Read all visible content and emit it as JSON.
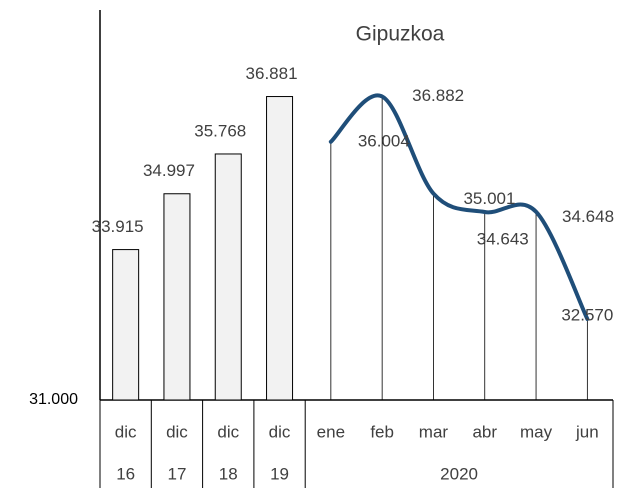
{
  "chart_data": {
    "type": "bar-line",
    "title": "Gipuzkoa",
    "categories": [
      {
        "month": "dic",
        "year": "16"
      },
      {
        "month": "dic",
        "year": "17"
      },
      {
        "month": "dic",
        "year": "18"
      },
      {
        "month": "dic",
        "year": "19"
      },
      {
        "month": "ene",
        "year": "2020"
      },
      {
        "month": "feb",
        "year": null
      },
      {
        "month": "mar",
        "year": null
      },
      {
        "month": "abr",
        "year": null
      },
      {
        "month": "may",
        "year": null
      },
      {
        "month": "jun",
        "year": null
      }
    ],
    "series": [
      {
        "type": "bar",
        "color": "#f2f2f2",
        "values": [
          33915,
          34997,
          35768,
          36881,
          null,
          null,
          null,
          null,
          null,
          null
        ],
        "value_labels": [
          "33.915",
          "34.997",
          "35.768",
          "36.881",
          null,
          null,
          null,
          null,
          null,
          null
        ]
      },
      {
        "type": "line",
        "color": "#1f4e79",
        "values": [
          null,
          null,
          null,
          null,
          36004,
          36882,
          35001,
          34643,
          34648,
          32570
        ],
        "value_labels": [
          null,
          null,
          null,
          null,
          "36.004",
          "36.882",
          "35.001",
          "34.643",
          "34.648",
          "32.570"
        ]
      }
    ],
    "ylim": [
      31000,
      38500
    ],
    "yticks": [
      {
        "value": 31000,
        "label": "31.000"
      }
    ]
  }
}
